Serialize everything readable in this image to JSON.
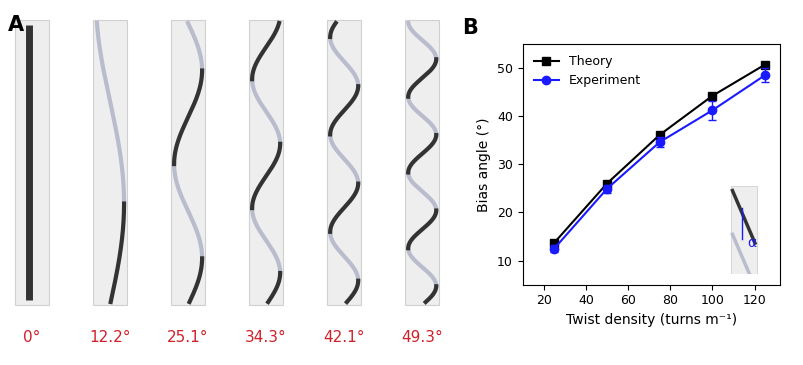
{
  "panel_a": {
    "label": "A",
    "label_color": "#d0202a",
    "images": [
      {
        "value": 0,
        "label": "0°"
      },
      {
        "value": 12.2,
        "label": "12.2°"
      },
      {
        "value": 25.1,
        "label": "25.1°"
      },
      {
        "value": 34.3,
        "label": "34.3°"
      },
      {
        "value": 42.1,
        "label": "42.1°"
      },
      {
        "value": 49.3,
        "label": "49.3°"
      }
    ]
  },
  "chart_data": {
    "type": "line",
    "label": "B",
    "xlabel": "Twist density (turns m⁻¹)",
    "ylabel": "Bias angle (°)",
    "x": [
      25,
      50,
      75,
      100,
      125
    ],
    "series": [
      {
        "name": "Theory",
        "color": "#000000",
        "marker": "square",
        "values": [
          13.7,
          26.0,
          36.1,
          44.2,
          50.7
        ]
      },
      {
        "name": "Experiment",
        "color": "#1a1aff",
        "marker": "circle",
        "values": [
          12.5,
          24.9,
          34.6,
          41.2,
          48.5
        ],
        "errors": [
          0.8,
          0.8,
          1.0,
          2.0,
          1.5
        ]
      }
    ],
    "xlim": [
      10,
      132
    ],
    "xticks": [
      20,
      40,
      60,
      80,
      100,
      120
    ],
    "ylim": [
      5,
      55
    ],
    "yticks": [
      10,
      20,
      30,
      40,
      50
    ],
    "legend": "upper left",
    "annotation": "α"
  }
}
